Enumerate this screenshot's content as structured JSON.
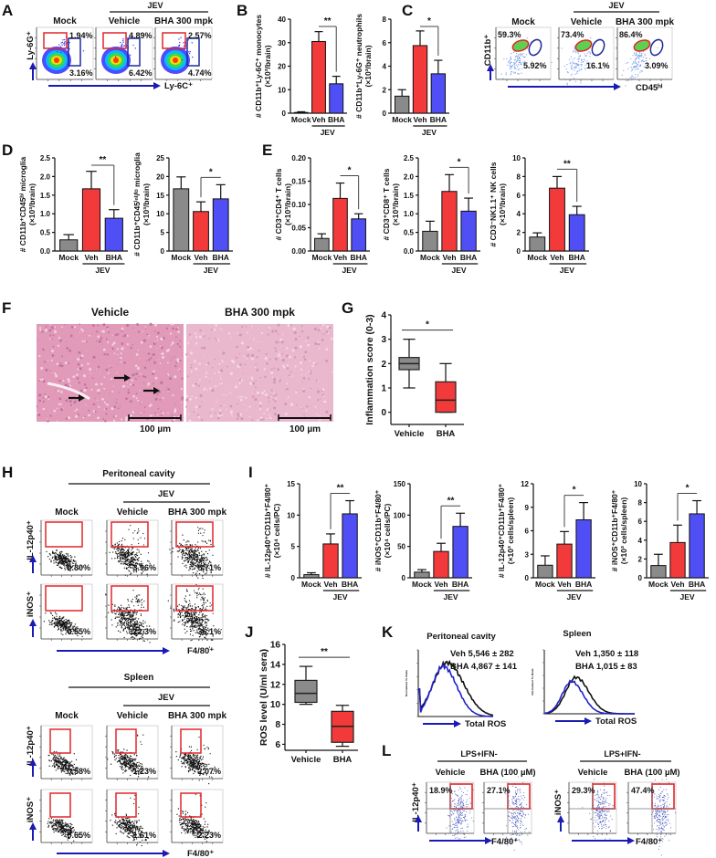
{
  "colors": {
    "mock": "#8a8a8a",
    "vehicle": "#f23a3a",
    "bha": "#4f4ff5",
    "gate_red": "#e0262b",
    "gate_blue": "#1c2aa0",
    "arrow": "#1a1ab4"
  },
  "panels": {
    "A": "A",
    "B": "B",
    "C": "C",
    "D": "D",
    "E": "E",
    "F": "F",
    "G": "G",
    "H": "H",
    "I": "I",
    "J": "J",
    "K": "K",
    "L": "L"
  },
  "flow_A": {
    "group": "JEV",
    "columns": [
      "Mock",
      "Vehicle",
      "BHA 300 mpk"
    ],
    "y_label": "Ly-6G⁺",
    "x_label": "Ly-6C⁺",
    "values": [
      [
        "1.94%",
        "3.16%"
      ],
      [
        "4.89%",
        "6.42%"
      ],
      [
        "2.57%",
        "4.74%"
      ]
    ]
  },
  "flow_C": {
    "group": "JEV",
    "columns": [
      "Mock",
      "Vehicle",
      "BHA 300 mpk"
    ],
    "y_label": "CD11b⁺",
    "x_label": "CD45ʰⁱ",
    "values": [
      [
        "59.3%",
        "5.92%"
      ],
      [
        "73.4%",
        "16.1%"
      ],
      [
        "86.4%",
        "3.09%"
      ]
    ]
  },
  "histology": {
    "titles": [
      "Vehicle",
      "BHA 300 mpk"
    ],
    "scale_bar": "100 µm"
  },
  "flow_H": [
    {
      "title": "Peritoneal cavity",
      "group": "JEV",
      "columns": [
        "Mock",
        "Vehicle",
        "BHA 300 mpk"
      ],
      "x_label": "F4/80⁺",
      "rows": [
        {
          "marker": "IL-12p40⁺",
          "values": [
            "0.30%",
            "3.96%",
            "5.71%"
          ]
        },
        {
          "marker": "iNOS⁺",
          "values": [
            "0.55%",
            "22.3%",
            "36.1%"
          ]
        }
      ]
    },
    {
      "title": "Spleen",
      "group": "JEV",
      "columns": [
        "Mock",
        "Vehicle",
        "BHA 300 mpk"
      ],
      "x_label": "F4/80⁺",
      "rows": [
        {
          "marker": "IL-12p40⁺",
          "values": [
            "0.58%",
            "1.23%",
            "2.07%"
          ]
        },
        {
          "marker": "iNOS⁺",
          "values": [
            "0.65%",
            "1.61%",
            "2.23%"
          ]
        }
      ]
    }
  ],
  "histograms_K": {
    "x_label": "Total ROS",
    "y_label": "Normalized To Mode",
    "plots": [
      {
        "title": "Peritoneal cavity",
        "veh": "Veh  5,546 ± 282",
        "bha": "BHA 4,867 ± 141"
      },
      {
        "title": "Spleen",
        "veh": "Veh  1,350 ± 118",
        "bha": "BHA 1,015 ± 83"
      }
    ]
  },
  "flow_L": {
    "condition": "LPS+IFN-",
    "columns": [
      "Vehicle",
      "BHA (100 µM)"
    ],
    "x_label": "F4/80⁺",
    "plots": [
      {
        "marker": "IL-12p40⁺",
        "values": [
          "18.9%",
          "27.1%"
        ]
      },
      {
        "marker": "iNOS⁺",
        "values": [
          "29.3%",
          "47.4%"
        ]
      }
    ]
  },
  "chart_data": [
    {
      "id": "B1",
      "type": "bar",
      "categories": [
        "Mock",
        "Veh",
        "BHA"
      ],
      "group": "JEV",
      "ylabel": [
        "# CD11b⁺Ly-6C⁺ monocytes",
        "(×10³/brain)"
      ],
      "ticks": [
        0,
        10,
        20,
        30,
        40
      ],
      "ylim": [
        0,
        40
      ],
      "values": [
        0.3,
        30.5,
        12.5
      ],
      "errors": [
        0.3,
        4.2,
        3.2
      ],
      "sig": "**"
    },
    {
      "id": "B2",
      "type": "bar",
      "categories": [
        "Mock",
        "Veh",
        "BHA"
      ],
      "group": "JEV",
      "ylabel": [
        "# CD11b⁺Ly-6G⁺ neutrophils",
        "(×10³/brain)"
      ],
      "ticks": [
        0,
        2,
        4,
        6,
        8
      ],
      "ylim": [
        0,
        8
      ],
      "values": [
        1.45,
        5.75,
        3.35
      ],
      "errors": [
        0.55,
        1.25,
        1.15
      ],
      "sig": "*"
    },
    {
      "id": "D1",
      "type": "bar",
      "categories": [
        "Mock",
        "Veh",
        "BHA"
      ],
      "group": "JEV",
      "ylabel": [
        "# CD11b⁺CD45ʰⁱ microglia",
        "(×10³/brain)"
      ],
      "ticks": [
        "0.0",
        "0.5",
        "1.0",
        "1.5",
        "2.0",
        "2.5"
      ],
      "ylim": [
        0,
        2.5
      ],
      "values": [
        0.3,
        1.67,
        0.88
      ],
      "errors": [
        0.14,
        0.47,
        0.23
      ],
      "sig": "**"
    },
    {
      "id": "D2",
      "type": "bar",
      "categories": [
        "Mock",
        "Veh",
        "BHA"
      ],
      "group": "JEV",
      "ylabel": [
        "# CD11b⁺CD45ⁱⁿᵗ/ˡᵒ microglia",
        "(×10³/brain)"
      ],
      "ticks": [
        0,
        5,
        10,
        15,
        20,
        25
      ],
      "ylim": [
        0,
        25
      ],
      "values": [
        16.7,
        10.6,
        14.0
      ],
      "errors": [
        3.2,
        2.6,
        3.8
      ],
      "sig": "*"
    },
    {
      "id": "E1",
      "type": "bar",
      "categories": [
        "Mock",
        "Veh",
        "BHA"
      ],
      "group": "JEV",
      "ylabel": [
        "# CD3⁺CD4⁺ T cells",
        "(×10³/brain)"
      ],
      "ticks": [
        "0.00",
        "0.05",
        "0.10",
        "0.15",
        "0.20"
      ],
      "ylim": [
        0,
        0.2
      ],
      "values": [
        0.027,
        0.113,
        0.069
      ],
      "errors": [
        0.01,
        0.033,
        0.011
      ],
      "sig": "*"
    },
    {
      "id": "E2",
      "type": "bar",
      "categories": [
        "Mock",
        "Veh",
        "BHA"
      ],
      "group": "JEV",
      "ylabel": [
        "# CD3⁺CD8⁺ T cells",
        "(×10³/brain)"
      ],
      "ticks": [
        "0.0",
        "0.5",
        "1.0",
        "1.5",
        "2.0",
        "2.5"
      ],
      "ylim": [
        0,
        2.5
      ],
      "values": [
        0.53,
        1.6,
        1.07
      ],
      "errors": [
        0.27,
        0.45,
        0.35
      ],
      "sig": "*"
    },
    {
      "id": "E3",
      "type": "bar",
      "categories": [
        "Mock",
        "Veh",
        "BHA"
      ],
      "group": "JEV",
      "ylabel": [
        "# CD3⁻NK1.1⁺ NK cells",
        "(×10³/brain)"
      ],
      "ticks": [
        0,
        2,
        4,
        6,
        8,
        10
      ],
      "ylim": [
        0,
        10
      ],
      "values": [
        1.5,
        6.75,
        3.9
      ],
      "errors": [
        0.45,
        1.25,
        0.9
      ],
      "sig": "**"
    },
    {
      "id": "I1",
      "type": "bar",
      "categories": [
        "Mock",
        "Veh",
        "BHA"
      ],
      "group": "JEV",
      "ylabel": [
        "# IL-12p40⁺CD11b⁺F4/80⁺",
        "(×10⁴ cells/PC)"
      ],
      "ticks": [
        0,
        5,
        10,
        15
      ],
      "ylim": [
        0,
        15
      ],
      "values": [
        0.5,
        5.4,
        10.2
      ],
      "errors": [
        0.3,
        1.6,
        2.1
      ],
      "sig": "**"
    },
    {
      "id": "I2",
      "type": "bar",
      "categories": [
        "Mock",
        "Veh",
        "BHA"
      ],
      "group": "JEV",
      "ylabel": [
        "# iNOS⁺CD11b⁺F4/80⁺",
        "(×10⁴ cells/PC)"
      ],
      "ticks": [
        0,
        50,
        100,
        150
      ],
      "ylim": [
        0,
        150
      ],
      "values": [
        9,
        42,
        82
      ],
      "errors": [
        4,
        13,
        21
      ],
      "sig": "**"
    },
    {
      "id": "I3",
      "type": "bar",
      "categories": [
        "Mock",
        "Veh",
        "BHA"
      ],
      "group": "JEV",
      "ylabel": [
        "# IL-12p40⁺CD11b⁺F4/80⁺",
        "(×10³ cells/spleen)"
      ],
      "ticks": [
        0,
        3,
        6,
        9,
        12
      ],
      "ylim": [
        0,
        12
      ],
      "values": [
        1.6,
        4.3,
        7.4
      ],
      "errors": [
        1.2,
        1.6,
        2.2
      ],
      "sig": "*"
    },
    {
      "id": "I4",
      "type": "bar",
      "categories": [
        "Mock",
        "Veh",
        "BHA"
      ],
      "group": "JEV",
      "ylabel": [
        "# iNOS⁺CD11b⁺F4/80⁺",
        "(×10³ cells/spleen)"
      ],
      "ticks": [
        0,
        2,
        4,
        6,
        8,
        10
      ],
      "ylim": [
        0,
        10
      ],
      "values": [
        1.3,
        3.75,
        6.8
      ],
      "errors": [
        1.2,
        1.85,
        1.4
      ],
      "sig": "*"
    },
    {
      "id": "G",
      "type": "box",
      "categories": [
        "Vehicle",
        "BHA"
      ],
      "ylabel": "Inflammation score (0-3)",
      "ticks": [
        0,
        1,
        2,
        3,
        4
      ],
      "ylim": [
        -0.5,
        4
      ],
      "sig": "*",
      "boxes": [
        {
          "min": 1,
          "q1": 1.75,
          "median": 2,
          "q3": 2.25,
          "max": 3
        },
        {
          "min": 0,
          "q1": 0,
          "median": 0.5,
          "q3": 1.25,
          "max": 2
        }
      ]
    },
    {
      "id": "J",
      "type": "box",
      "categories": [
        "Vehicle",
        "BHA"
      ],
      "ylabel": "ROS level (U/ml sera)",
      "ticks": [
        6,
        8,
        10,
        12,
        14,
        16
      ],
      "ylim": [
        5.4,
        16
      ],
      "sig": "**",
      "boxes": [
        {
          "min": 10,
          "q1": 10.2,
          "median": 11.1,
          "q3": 12.4,
          "max": 13.8
        },
        {
          "min": 5.8,
          "q1": 6.2,
          "median": 7.8,
          "q3": 9.3,
          "max": 9.9
        }
      ]
    }
  ]
}
